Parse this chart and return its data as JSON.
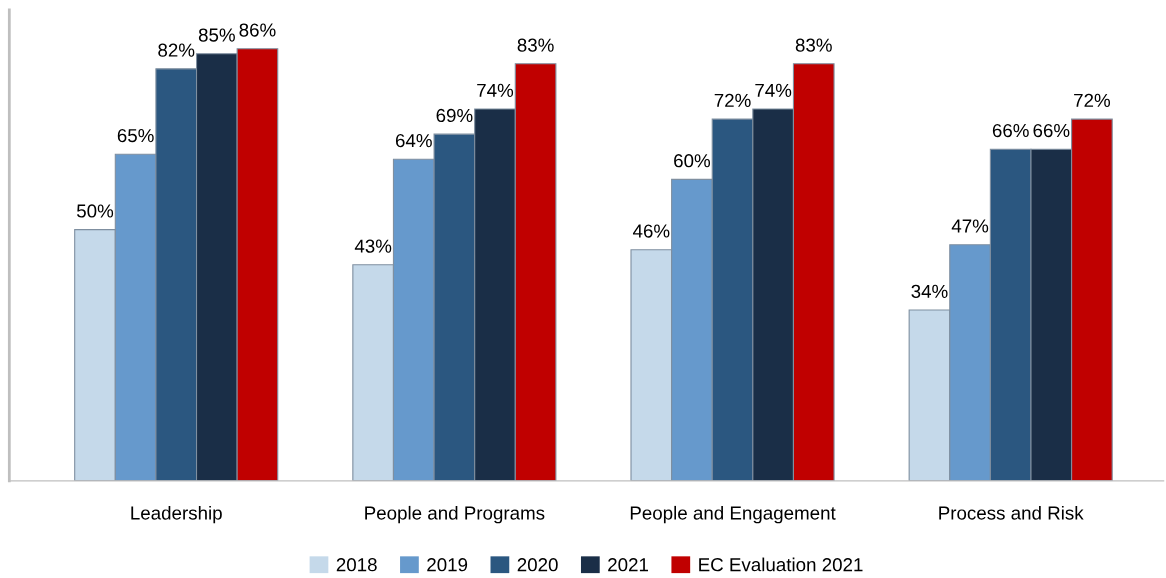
{
  "chart_data": {
    "type": "bar",
    "categories": [
      "Leadership",
      "People and Programs",
      "People and Engagement",
      "Process and Risk"
    ],
    "series": [
      {
        "name": "2018",
        "color": "#c5d9ea",
        "values": [
          50,
          43,
          46,
          34
        ],
        "value_labels": [
          "50%",
          "43%",
          "46%",
          "34%"
        ]
      },
      {
        "name": "2019",
        "color": "#6699cc",
        "values": [
          65,
          64,
          60,
          47
        ],
        "value_labels": [
          "65%",
          "64%",
          "60%",
          "47%"
        ]
      },
      {
        "name": "2020",
        "color": "#2b5780",
        "values": [
          82,
          69,
          72,
          66
        ],
        "value_labels": [
          "82%",
          "69%",
          "72%",
          "66%"
        ]
      },
      {
        "name": "2021",
        "color": "#1a2e47",
        "values": [
          85,
          74,
          74,
          66
        ],
        "value_labels": [
          "85%",
          "74%",
          "74%",
          "66%"
        ]
      },
      {
        "name": "EC Evaluation 2021",
        "color": "#c00000",
        "values": [
          86,
          83,
          83,
          72
        ],
        "value_labels": [
          "86%",
          "83%",
          "83%",
          "72%"
        ]
      }
    ],
    "legend": "bottom",
    "grid": false,
    "tick_labels": "x"
  }
}
